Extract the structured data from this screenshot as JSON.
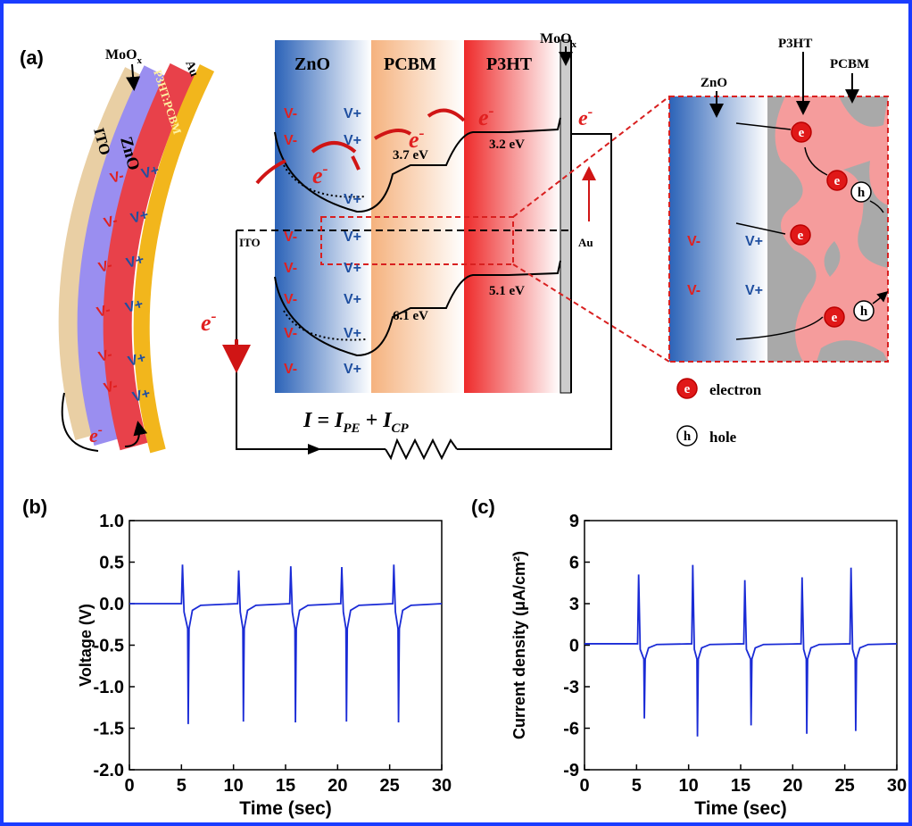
{
  "diagram": {
    "panel_label": "(a)",
    "moox": {
      "base": "MoO",
      "sub": "x"
    },
    "device_layers": [
      "ITO",
      "ZnO",
      "P3HT:PCBM",
      "Au"
    ],
    "band_layers": [
      "ZnO",
      "PCBM",
      "P3HT"
    ],
    "energy_levels": [
      "3.7 eV",
      "3.2 eV",
      "6.1 eV",
      "5.1 eV"
    ],
    "electrodes": [
      "ITO",
      "Au"
    ],
    "charge_minus": "V-",
    "charge_plus": "V+",
    "electron_label": {
      "base": "e",
      "sup": "-"
    },
    "equation": {
      "lhs": "I = I",
      "sub1": "PE",
      "plus": " + I",
      "sub2": "CP"
    },
    "zoom_labels": [
      "ZnO",
      "P3HT",
      "PCBM"
    ],
    "particle_electron": "e",
    "particle_hole": "h",
    "legend": [
      "electron",
      "hole"
    ]
  },
  "chart_data": [
    {
      "type": "line",
      "panel_label": "(b)",
      "xlabel": "Time (sec)",
      "ylabel": "Voltage (V)",
      "color": "#1a2bd6",
      "xlim": [
        0,
        30
      ],
      "xticks": [
        0,
        5,
        10,
        15,
        20,
        25,
        30
      ],
      "ylim": [
        -2,
        1
      ],
      "yticks": [
        {
          "value": -2,
          "label": "-2.0"
        },
        {
          "value": -1.5,
          "label": "-1.5"
        },
        {
          "value": -1,
          "label": "-1.0"
        },
        {
          "value": -0.5,
          "label": "-0.5"
        },
        {
          "value": 0,
          "label": "0.0"
        },
        {
          "value": 0.5,
          "label": "0.5"
        },
        {
          "value": 1,
          "label": "1.0"
        }
      ],
      "x": [
        0,
        5.0,
        5.1,
        5.25,
        5.6,
        5.65,
        5.73,
        6.05,
        6.85,
        10.4,
        10.5,
        10.65,
        10.9,
        10.95,
        11.03,
        11.35,
        12.15,
        15.4,
        15.5,
        15.65,
        15.9,
        15.95,
        16.03,
        16.35,
        17.15,
        20.3,
        20.4,
        20.55,
        20.8,
        20.85,
        20.93,
        21.25,
        22.05,
        25.3,
        25.4,
        25.55,
        25.8,
        25.85,
        25.93,
        26.25,
        27.05,
        30
      ],
      "values": [
        0,
        0,
        0.47,
        -0.1,
        -0.3,
        -1.45,
        -0.3,
        -0.08,
        -0.02,
        0,
        0.4,
        -0.1,
        -0.3,
        -1.42,
        -0.3,
        -0.08,
        -0.02,
        0,
        0.45,
        -0.1,
        -0.3,
        -1.43,
        -0.3,
        -0.08,
        -0.02,
        0,
        0.44,
        -0.1,
        -0.3,
        -1.42,
        -0.3,
        -0.08,
        -0.02,
        0,
        0.47,
        -0.1,
        -0.3,
        -1.43,
        -0.3,
        -0.08,
        -0.02,
        0
      ]
    },
    {
      "type": "line",
      "panel_label": "(c)",
      "xlabel": "Time (sec)",
      "ylabel": "Current density (μA/cm²)",
      "color": "#1a2bd6",
      "xlim": [
        0,
        30
      ],
      "xticks": [
        0,
        5,
        10,
        15,
        20,
        25,
        30
      ],
      "ylim": [
        -9,
        9
      ],
      "yticks": [
        -9,
        -6,
        -3,
        0,
        3,
        6,
        9
      ],
      "x": [
        0,
        5.1,
        5.2,
        5.35,
        5.7,
        5.75,
        5.83,
        6.15,
        6.95,
        10.3,
        10.4,
        10.55,
        10.8,
        10.85,
        10.93,
        11.25,
        12.05,
        15.3,
        15.4,
        15.55,
        15.95,
        16.0,
        16.08,
        16.4,
        17.2,
        20.8,
        20.9,
        21.05,
        21.3,
        21.35,
        21.43,
        21.75,
        22.55,
        25.5,
        25.6,
        25.75,
        26.0,
        26.05,
        26.13,
        26.45,
        27.25,
        30
      ],
      "values": [
        0.1,
        0.1,
        5.1,
        -0.3,
        -1,
        -5.3,
        -1,
        -0.2,
        0.05,
        0.1,
        5.8,
        -0.3,
        -1,
        -6.6,
        -1,
        -0.2,
        0.05,
        0.1,
        4.7,
        -0.3,
        -1,
        -5.8,
        -1,
        -0.2,
        0.05,
        0.1,
        4.9,
        -0.3,
        -1,
        -6.4,
        -1,
        -0.2,
        0.05,
        0.1,
        5.6,
        -0.3,
        -1,
        -6.2,
        -1,
        -0.2,
        0.05,
        0.1
      ]
    }
  ]
}
